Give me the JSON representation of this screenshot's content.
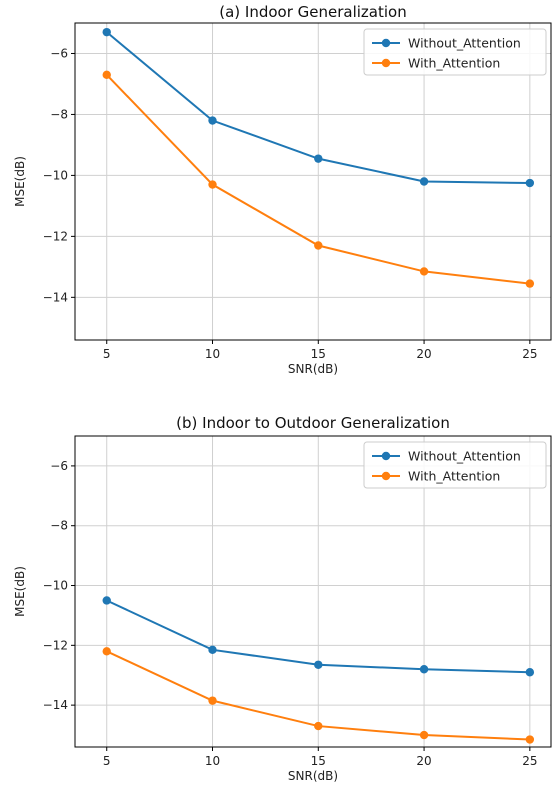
{
  "chart_data": [
    {
      "type": "line",
      "title": "(a) Indoor Generalization",
      "xlabel": "SNR(dB)",
      "ylabel": "MSE(dB)",
      "x": [
        5,
        10,
        15,
        20,
        25
      ],
      "xticks": [
        5,
        10,
        15,
        20,
        25
      ],
      "yticks": [
        -6,
        -8,
        -10,
        -12,
        -14
      ],
      "ylim": [
        -15.4,
        -5.0
      ],
      "grid": true,
      "legend_position": "top-right",
      "series": [
        {
          "name": "Without_Attention",
          "color": "#1f77b4",
          "values": [
            -5.3,
            -8.2,
            -9.45,
            -10.2,
            -10.25
          ]
        },
        {
          "name": "With_Attention",
          "color": "#ff7f0e",
          "values": [
            -6.7,
            -10.3,
            -12.3,
            -13.15,
            -13.55
          ]
        }
      ]
    },
    {
      "type": "line",
      "title": "(b) Indoor to Outdoor Generalization",
      "xlabel": "SNR(dB)",
      "ylabel": "MSE(dB)",
      "x": [
        5,
        10,
        15,
        20,
        25
      ],
      "xticks": [
        5,
        10,
        15,
        20,
        25
      ],
      "yticks": [
        -6,
        -8,
        -10,
        -12,
        -14
      ],
      "ylim": [
        -15.4,
        -5.0
      ],
      "grid": true,
      "legend_position": "top-right",
      "series": [
        {
          "name": "Without_Attention",
          "color": "#1f77b4",
          "values": [
            -10.5,
            -12.15,
            -12.65,
            -12.8,
            -12.9
          ]
        },
        {
          "name": "With_Attention",
          "color": "#ff7f0e",
          "values": [
            -12.2,
            -13.85,
            -14.7,
            -15.0,
            -15.15
          ]
        }
      ]
    }
  ]
}
